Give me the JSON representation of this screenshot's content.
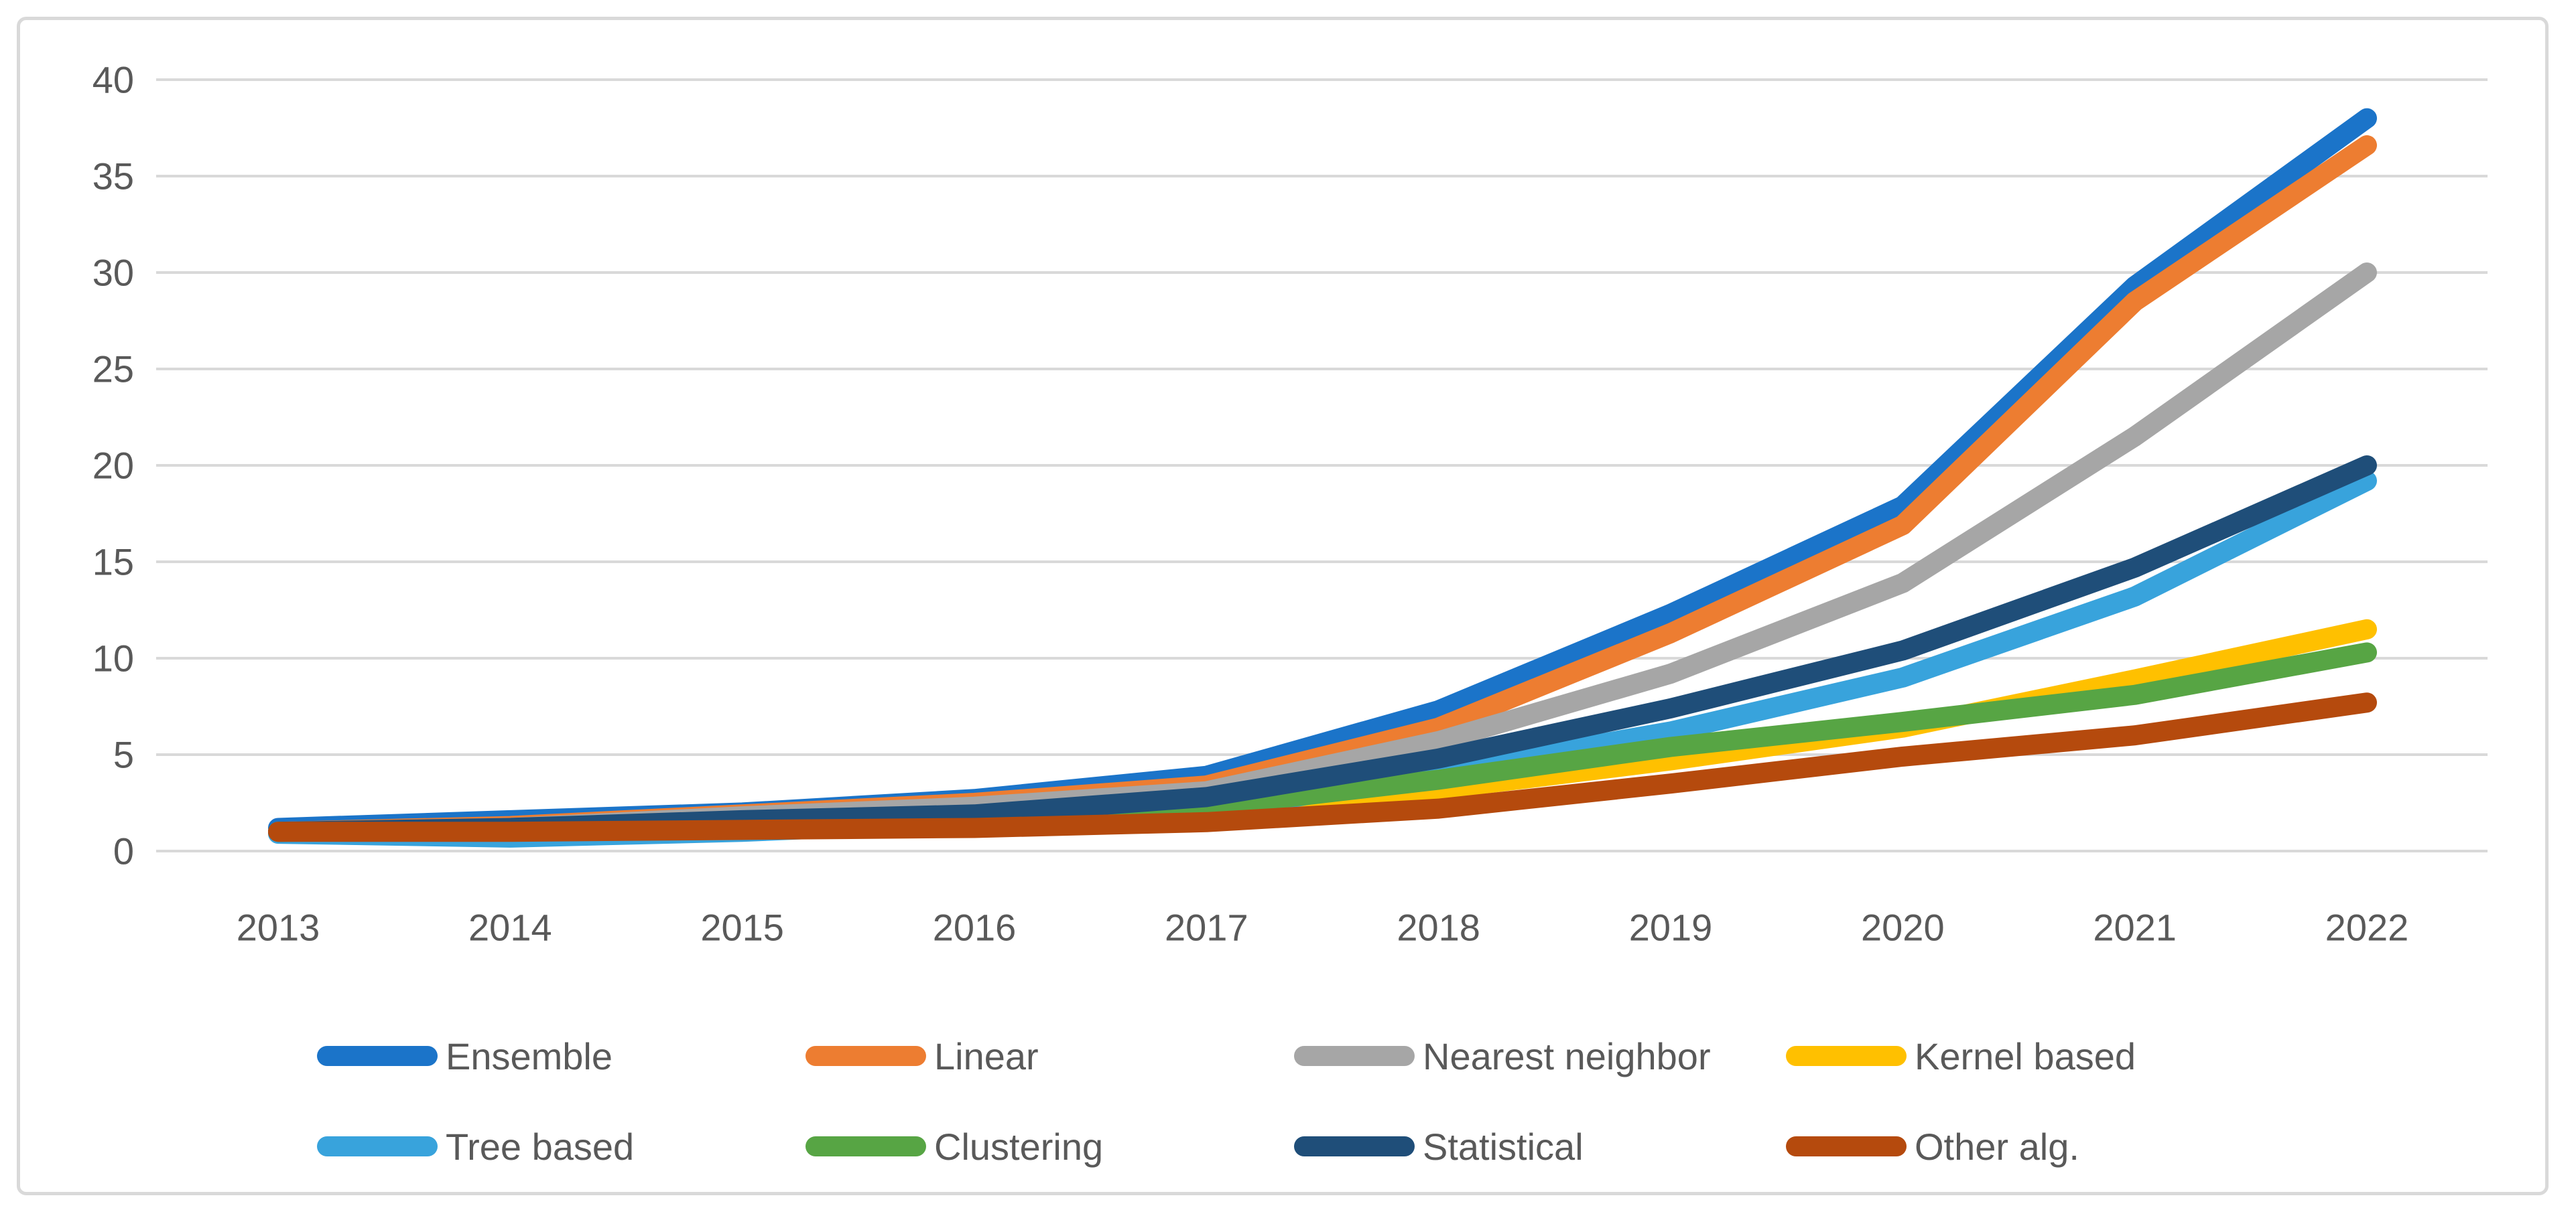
{
  "figure": {
    "background": "#ffffff",
    "frame_color": "#d9d9d9",
    "gridline_color": "#d9d9d9",
    "tick_label_color": "#595959"
  },
  "chart_data": {
    "type": "line",
    "title": "",
    "xlabel": "",
    "ylabel": "",
    "categories": [
      "2013",
      "2014",
      "2015",
      "2016",
      "2017",
      "2018",
      "2019",
      "2020",
      "2021",
      "2022"
    ],
    "ylim": [
      0,
      40
    ],
    "y_ticks": [
      0,
      5,
      10,
      15,
      20,
      25,
      30,
      35,
      40
    ],
    "grid": "horizontal",
    "legend_position": "bottom",
    "series": [
      {
        "name": "Ensemble",
        "color": "#1b74c9",
        "values": [
          1.2,
          1.6,
          2.0,
          2.7,
          3.9,
          7.3,
          12.3,
          17.9,
          29.3,
          38.0
        ]
      },
      {
        "name": "Linear",
        "color": "#ed7d31",
        "values": [
          1.0,
          1.3,
          1.9,
          2.5,
          3.4,
          6.4,
          11.3,
          16.9,
          28.5,
          36.6
        ]
      },
      {
        "name": "Nearest neighbor",
        "color": "#a6a6a6",
        "values": [
          1.0,
          1.2,
          1.8,
          2.3,
          3.1,
          5.7,
          9.2,
          13.9,
          21.5,
          30.0
        ]
      },
      {
        "name": "Kernel based",
        "color": "#ffc000",
        "values": [
          1.0,
          1.1,
          1.4,
          1.7,
          2.2,
          3.2,
          4.7,
          6.4,
          8.9,
          11.5
        ]
      },
      {
        "name": "Tree based",
        "color": "#38a3dc",
        "values": [
          0.9,
          0.7,
          1.0,
          1.5,
          2.0,
          4.1,
          6.2,
          9.0,
          13.2,
          19.2
        ]
      },
      {
        "name": "Clustering",
        "color": "#57a544",
        "values": [
          1.0,
          1.1,
          1.5,
          1.8,
          2.3,
          3.7,
          5.4,
          6.7,
          8.1,
          10.3
        ]
      },
      {
        "name": "Statistical",
        "color": "#1f4e79",
        "values": [
          1.0,
          1.2,
          1.6,
          1.9,
          2.8,
          4.8,
          7.4,
          10.4,
          14.7,
          20.0
        ]
      },
      {
        "name": "Other alg.",
        "color": "#b54a0d",
        "values": [
          1.0,
          1.0,
          1.1,
          1.2,
          1.5,
          2.2,
          3.5,
          4.9,
          6.0,
          7.7
        ]
      }
    ]
  }
}
